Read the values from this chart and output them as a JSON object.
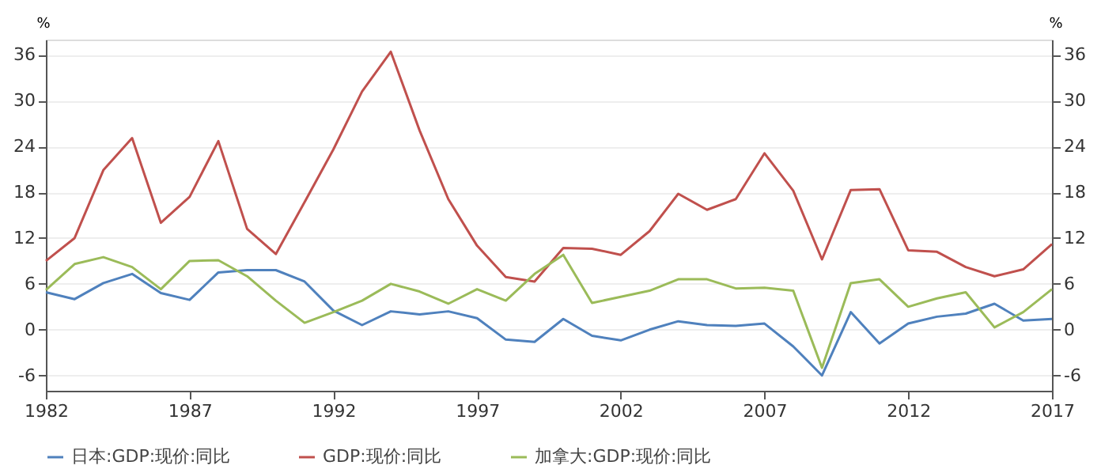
{
  "chart_data": {
    "type": "line",
    "ylabel": "%",
    "y2label": "%",
    "x": [
      1982,
      1983,
      1984,
      1985,
      1986,
      1987,
      1988,
      1989,
      1990,
      1991,
      1992,
      1993,
      1994,
      1995,
      1996,
      1997,
      1998,
      1999,
      2000,
      2001,
      2002,
      2003,
      2004,
      2005,
      2006,
      2007,
      2008,
      2009,
      2010,
      2011,
      2012,
      2013,
      2014,
      2015,
      2016,
      2017
    ],
    "xlim": [
      1982,
      2017
    ],
    "xticks": [
      1982,
      1987,
      1992,
      1997,
      2002,
      2007,
      2012,
      2017
    ],
    "ylim": [
      -8,
      38
    ],
    "yticks": [
      -6,
      0,
      6,
      12,
      18,
      24,
      30,
      36
    ],
    "y2lim": [
      -8,
      38
    ],
    "y2ticks": [
      -6,
      0,
      6,
      12,
      18,
      24,
      30,
      36
    ],
    "grid": "y",
    "legend": "bottom",
    "marker": "none",
    "line_style": "solid",
    "series": [
      {
        "name": "日本:GDP:现价:同比",
        "color": "#4f81bd",
        "values": [
          4.9,
          4.0,
          6.1,
          7.3,
          4.8,
          3.9,
          7.5,
          7.8,
          7.8,
          6.3,
          2.5,
          0.6,
          2.4,
          2.0,
          2.4,
          1.5,
          -1.3,
          -1.6,
          1.4,
          -0.8,
          -1.4,
          0.0,
          1.1,
          0.6,
          0.5,
          0.8,
          -2.2,
          -6.0,
          2.3,
          -1.8,
          0.8,
          1.7,
          2.1,
          3.4,
          1.2,
          1.4
        ]
      },
      {
        "name": "GDP:现价:同比",
        "color": "#c0504d",
        "values": [
          9.0,
          12.0,
          20.9,
          25.1,
          14.0,
          17.4,
          24.7,
          13.2,
          9.9,
          16.7,
          23.6,
          31.2,
          36.4,
          26.1,
          17.1,
          11.0,
          6.9,
          6.3,
          10.7,
          10.6,
          9.8,
          12.9,
          17.8,
          15.7,
          17.1,
          23.1,
          18.2,
          9.2,
          18.3,
          18.4,
          10.4,
          10.2,
          8.2,
          7.0,
          7.9,
          11.2
        ]
      },
      {
        "name": "加拿大:GDP:现价:同比",
        "color": "#9bbb59",
        "values": [
          5.2,
          8.6,
          9.5,
          8.2,
          5.3,
          9.0,
          9.1,
          7.0,
          3.8,
          0.9,
          2.3,
          3.8,
          6.0,
          5.0,
          3.4,
          5.3,
          3.8,
          7.3,
          9.8,
          3.5,
          4.3,
          5.1,
          6.6,
          6.6,
          5.4,
          5.5,
          5.1,
          -5.0,
          6.1,
          6.6,
          3.0,
          4.1,
          4.9,
          0.3,
          2.3,
          5.3
        ]
      }
    ]
  }
}
